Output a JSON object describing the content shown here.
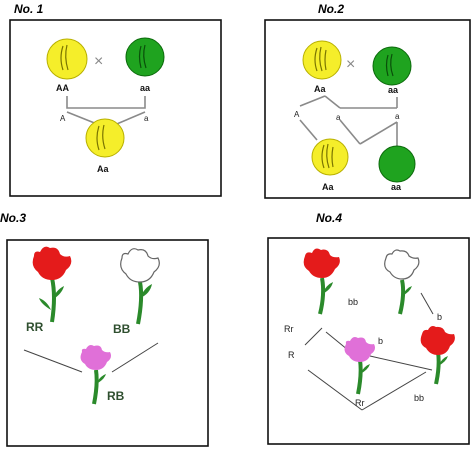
{
  "panels": {
    "p1": {
      "title": "No. 1",
      "cross_symbol": "×",
      "parent_left": "AA",
      "parent_right": "aa",
      "gamete_left": "A",
      "gamete_right": "a",
      "offspring": "Aa"
    },
    "p2": {
      "title": "No.2",
      "cross_symbol": "×",
      "parent_left": "Aa",
      "parent_right": "aa",
      "gamete_1": "A",
      "gamete_2": "a",
      "gamete_3": "a",
      "offspring_left": "Aa",
      "offspring_right": "aa"
    },
    "p3": {
      "title": "No.3",
      "parent_left": "RR",
      "parent_right": "BB",
      "offspring": "RB"
    },
    "p4": {
      "title": "No.4",
      "label_bb_top": "bb",
      "label_b": "b",
      "label_rr": "Rr",
      "label_r": "R",
      "label_rr_bottom": "Rr",
      "label_bb_bottom": "bb"
    }
  },
  "colors": {
    "yellow": "#f5ee2a",
    "green": "#1fa31f",
    "red_flower": "#e41b1b",
    "pink_flower": "#e070d8",
    "white_flower": "#ffffff",
    "stem": "#2b8a2b"
  }
}
